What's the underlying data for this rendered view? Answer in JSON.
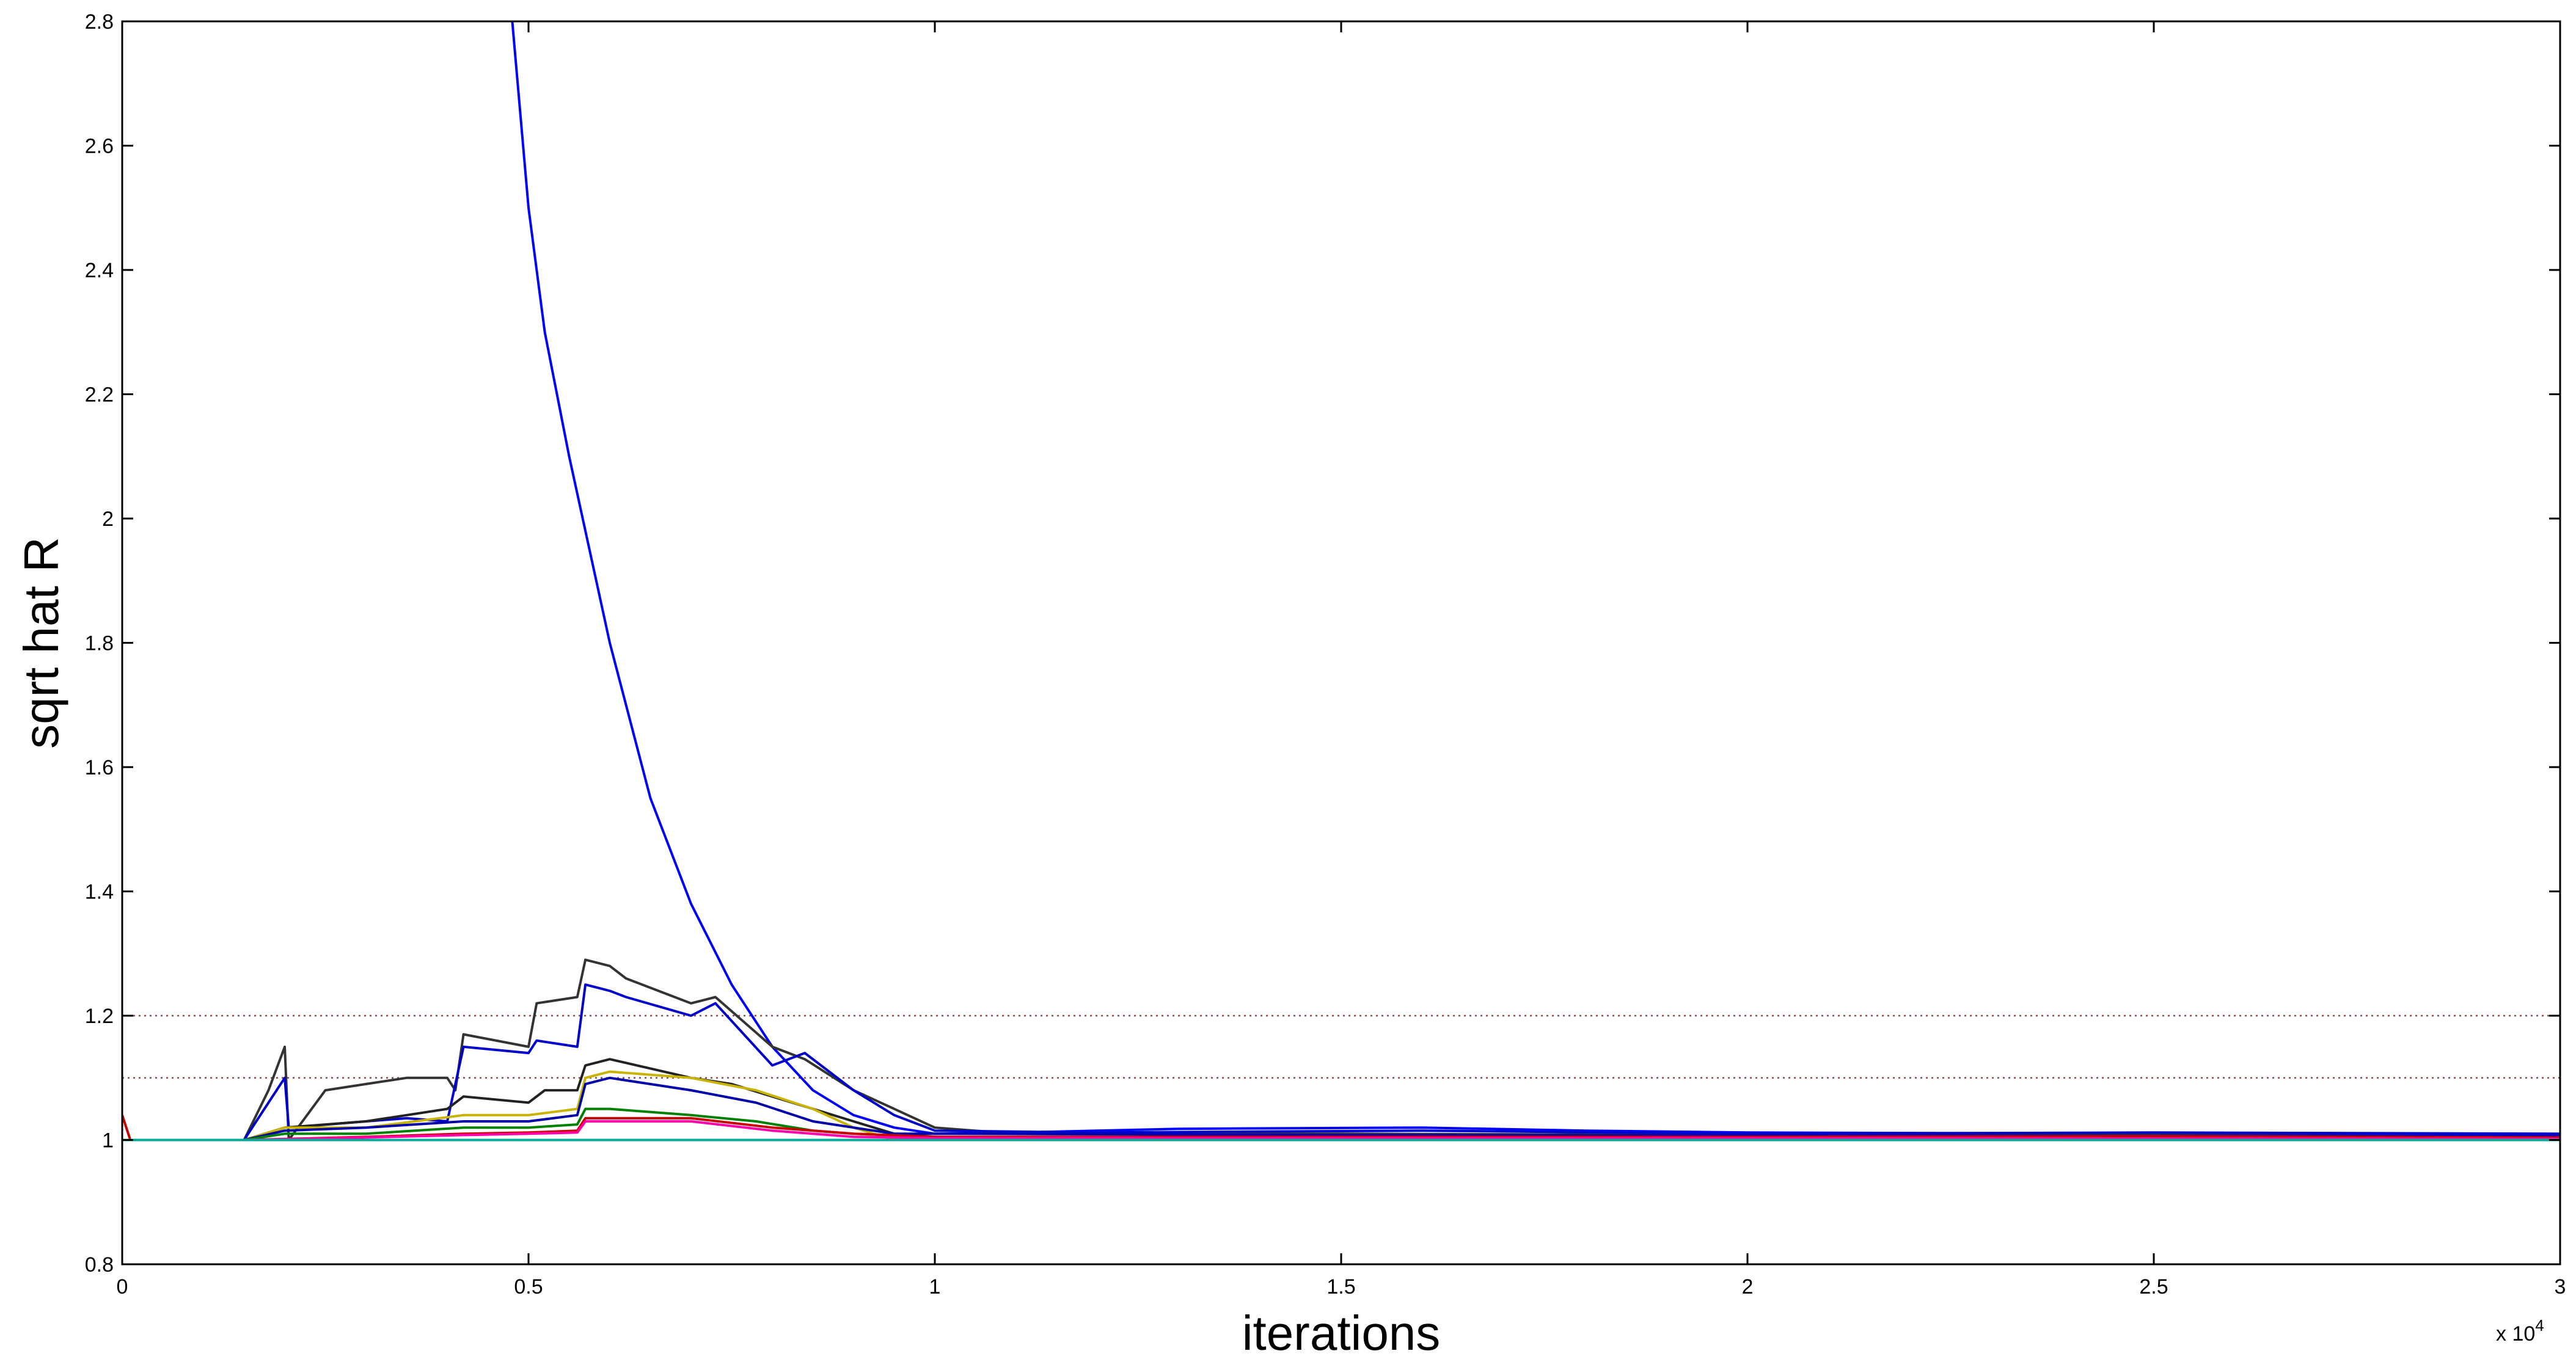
{
  "chart_data": {
    "type": "line",
    "xlabel": "iterations",
    "ylabel": "sqrt hat R",
    "x_scale_label": "x 10",
    "x_scale_exponent": "4",
    "xlim": [
      0,
      3
    ],
    "ylim": [
      0.8,
      2.8
    ],
    "x_ticks": [
      "0",
      "0.5",
      "1",
      "1.5",
      "2",
      "2.5",
      "3"
    ],
    "y_ticks": [
      "0.8",
      "1",
      "1.2",
      "1.4",
      "1.6",
      "1.8",
      "2",
      "2.2",
      "2.4",
      "2.6",
      "2.8"
    ],
    "grid": false,
    "legend": "none",
    "reference_lines": [
      {
        "y": 1.1,
        "color": "#8b4a4a",
        "style": "dotted"
      },
      {
        "y": 1.2,
        "color": "#8b4a4a",
        "style": "dotted"
      }
    ],
    "series": [
      {
        "color": "#0000ff",
        "points": [
          [
            0.48,
            2.8
          ],
          [
            0.5,
            2.5
          ],
          [
            0.52,
            2.3
          ],
          [
            0.55,
            2.1
          ],
          [
            0.6,
            1.8
          ],
          [
            0.65,
            1.55
          ],
          [
            0.7,
            1.38
          ],
          [
            0.75,
            1.25
          ],
          [
            0.8,
            1.15
          ],
          [
            0.85,
            1.08
          ],
          [
            0.9,
            1.04
          ],
          [
            0.95,
            1.02
          ],
          [
            1.0,
            1.01
          ],
          [
            1.1,
            1.012
          ],
          [
            1.3,
            1.018
          ],
          [
            1.6,
            1.02
          ],
          [
            1.8,
            1.015
          ],
          [
            2.0,
            1.012
          ],
          [
            2.5,
            1.01
          ],
          [
            3.0,
            1.008
          ]
        ]
      },
      {
        "color": "#333333",
        "points": [
          [
            0,
            1.0
          ],
          [
            0.15,
            1.0
          ],
          [
            0.18,
            1.08
          ],
          [
            0.2,
            1.15
          ],
          [
            0.205,
            1.0
          ],
          [
            0.25,
            1.08
          ],
          [
            0.3,
            1.09
          ],
          [
            0.35,
            1.1
          ],
          [
            0.4,
            1.1
          ],
          [
            0.41,
            1.08
          ],
          [
            0.42,
            1.17
          ],
          [
            0.5,
            1.15
          ],
          [
            0.51,
            1.22
          ],
          [
            0.56,
            1.23
          ],
          [
            0.57,
            1.29
          ],
          [
            0.6,
            1.28
          ],
          [
            0.62,
            1.26
          ],
          [
            0.7,
            1.22
          ],
          [
            0.73,
            1.23
          ],
          [
            0.8,
            1.15
          ],
          [
            0.84,
            1.13
          ],
          [
            0.9,
            1.08
          ],
          [
            0.95,
            1.05
          ],
          [
            1.0,
            1.02
          ],
          [
            1.1,
            1.01
          ],
          [
            1.5,
            1.01
          ],
          [
            2.0,
            1.008
          ],
          [
            2.5,
            1.008
          ],
          [
            3.0,
            1.005
          ]
        ]
      },
      {
        "color": "#0000cc",
        "points": [
          [
            0,
            1.0
          ],
          [
            0.15,
            1.0
          ],
          [
            0.18,
            1.06
          ],
          [
            0.2,
            1.1
          ],
          [
            0.205,
            1.02
          ],
          [
            0.3,
            1.03
          ],
          [
            0.35,
            1.035
          ],
          [
            0.4,
            1.03
          ],
          [
            0.42,
            1.15
          ],
          [
            0.5,
            1.14
          ],
          [
            0.51,
            1.16
          ],
          [
            0.56,
            1.15
          ],
          [
            0.57,
            1.25
          ],
          [
            0.6,
            1.24
          ],
          [
            0.62,
            1.23
          ],
          [
            0.7,
            1.2
          ],
          [
            0.73,
            1.22
          ],
          [
            0.8,
            1.12
          ],
          [
            0.84,
            1.14
          ],
          [
            0.9,
            1.08
          ],
          [
            0.95,
            1.04
          ],
          [
            1.0,
            1.015
          ],
          [
            1.2,
            1.012
          ],
          [
            1.6,
            1.015
          ],
          [
            2.0,
            1.01
          ],
          [
            2.5,
            1.012
          ],
          [
            3.0,
            1.01
          ]
        ]
      },
      {
        "color": "#222222",
        "points": [
          [
            0,
            1.0
          ],
          [
            0.15,
            1.0
          ],
          [
            0.2,
            1.02
          ],
          [
            0.3,
            1.03
          ],
          [
            0.4,
            1.05
          ],
          [
            0.42,
            1.07
          ],
          [
            0.5,
            1.06
          ],
          [
            0.52,
            1.08
          ],
          [
            0.56,
            1.08
          ],
          [
            0.57,
            1.12
          ],
          [
            0.6,
            1.13
          ],
          [
            0.7,
            1.1
          ],
          [
            0.75,
            1.09
          ],
          [
            0.8,
            1.07
          ],
          [
            0.85,
            1.05
          ],
          [
            0.9,
            1.03
          ],
          [
            0.95,
            1.01
          ],
          [
            1.0,
            1.005
          ],
          [
            1.5,
            1.005
          ],
          [
            2.0,
            1.005
          ],
          [
            3.0,
            1.004
          ]
        ]
      },
      {
        "color": "#c8b400",
        "points": [
          [
            0,
            1.0
          ],
          [
            0.15,
            1.0
          ],
          [
            0.2,
            1.02
          ],
          [
            0.3,
            1.02
          ],
          [
            0.42,
            1.04
          ],
          [
            0.5,
            1.04
          ],
          [
            0.56,
            1.05
          ],
          [
            0.57,
            1.1
          ],
          [
            0.6,
            1.11
          ],
          [
            0.7,
            1.1
          ],
          [
            0.78,
            1.08
          ],
          [
            0.85,
            1.05
          ],
          [
            0.9,
            1.02
          ],
          [
            0.95,
            1.0
          ],
          [
            1.0,
            1.0
          ],
          [
            1.5,
            1.003
          ],
          [
            2.0,
            1.004
          ],
          [
            2.5,
            1.005
          ],
          [
            3.0,
            1.003
          ]
        ]
      },
      {
        "color": "#0000aa",
        "points": [
          [
            0,
            1.0
          ],
          [
            0.15,
            1.0
          ],
          [
            0.2,
            1.015
          ],
          [
            0.3,
            1.02
          ],
          [
            0.42,
            1.03
          ],
          [
            0.5,
            1.03
          ],
          [
            0.56,
            1.04
          ],
          [
            0.57,
            1.09
          ],
          [
            0.6,
            1.1
          ],
          [
            0.7,
            1.08
          ],
          [
            0.78,
            1.06
          ],
          [
            0.85,
            1.03
          ],
          [
            0.9,
            1.02
          ],
          [
            0.95,
            1.01
          ],
          [
            1.0,
            1.01
          ],
          [
            1.5,
            1.008
          ],
          [
            2.0,
            1.007
          ],
          [
            3.0,
            1.006
          ]
        ]
      },
      {
        "color": "#008000",
        "points": [
          [
            0,
            1.0
          ],
          [
            0.15,
            1.0
          ],
          [
            0.2,
            1.01
          ],
          [
            0.3,
            1.01
          ],
          [
            0.42,
            1.02
          ],
          [
            0.5,
            1.02
          ],
          [
            0.56,
            1.025
          ],
          [
            0.57,
            1.05
          ],
          [
            0.6,
            1.05
          ],
          [
            0.7,
            1.04
          ],
          [
            0.78,
            1.03
          ],
          [
            0.85,
            1.015
          ],
          [
            0.9,
            1.01
          ],
          [
            1.0,
            1.005
          ],
          [
            1.5,
            1.004
          ],
          [
            2.0,
            1.003
          ],
          [
            3.0,
            1.002
          ]
        ]
      },
      {
        "color": "#cc0000",
        "points": [
          [
            0,
            1.04
          ],
          [
            0.01,
            1.0
          ],
          [
            0.15,
            1.0
          ],
          [
            0.3,
            1.005
          ],
          [
            0.42,
            1.01
          ],
          [
            0.5,
            1.012
          ],
          [
            0.56,
            1.015
          ],
          [
            0.57,
            1.035
          ],
          [
            0.7,
            1.035
          ],
          [
            0.8,
            1.02
          ],
          [
            0.9,
            1.01
          ],
          [
            1.0,
            1.005
          ],
          [
            1.5,
            1.005
          ],
          [
            2.0,
            1.005
          ],
          [
            2.5,
            1.006
          ],
          [
            3.0,
            1.004
          ]
        ]
      },
      {
        "color": "#ff00aa",
        "points": [
          [
            0,
            1.0
          ],
          [
            0.15,
            1.0
          ],
          [
            0.3,
            1.004
          ],
          [
            0.42,
            1.008
          ],
          [
            0.5,
            1.01
          ],
          [
            0.56,
            1.012
          ],
          [
            0.57,
            1.03
          ],
          [
            0.7,
            1.03
          ],
          [
            0.8,
            1.015
          ],
          [
            0.9,
            1.005
          ],
          [
            1.0,
            1.003
          ],
          [
            2.0,
            1.003
          ],
          [
            3.0,
            1.002
          ]
        ]
      },
      {
        "color": "#00aa99",
        "points": [
          [
            0,
            1.0
          ],
          [
            0.5,
            1.0
          ],
          [
            1.0,
            1.0
          ],
          [
            2.0,
            1.0
          ],
          [
            3.0,
            1.0
          ]
        ]
      }
    ]
  }
}
